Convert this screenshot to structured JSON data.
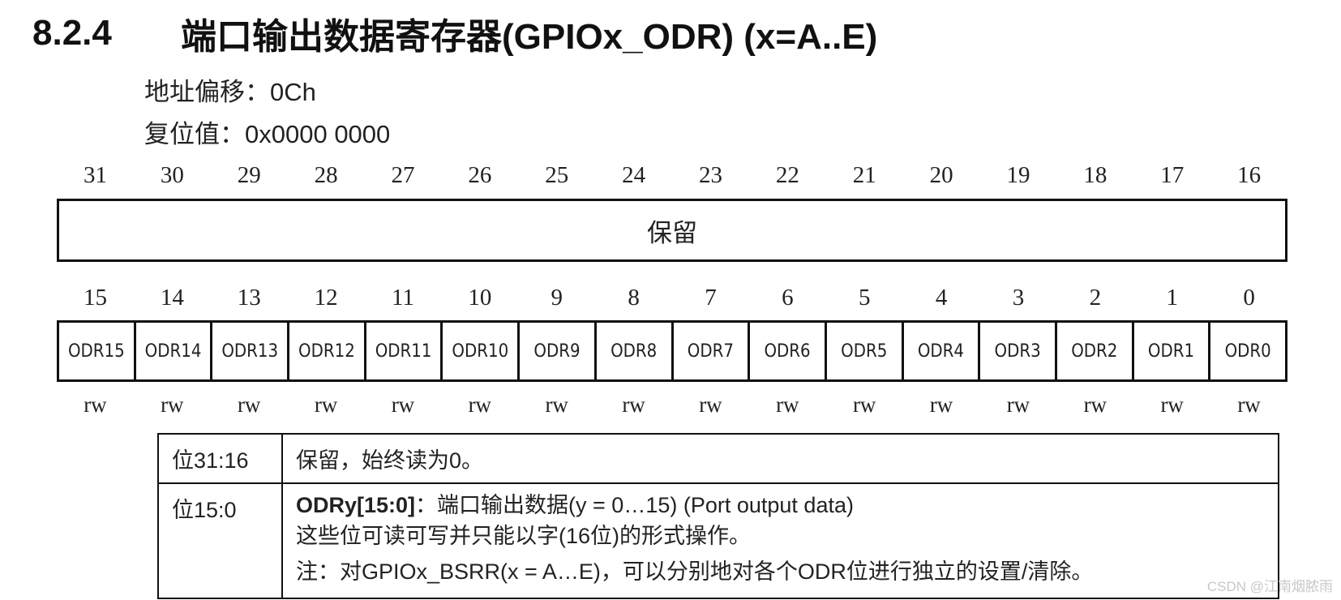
{
  "heading": {
    "number": "8.2.4",
    "title": "端口输出数据寄存器(GPIOx_ODR) (x=A..E)"
  },
  "meta": {
    "offset": "地址偏移：0Ch",
    "reset": "复位值：0x0000 0000"
  },
  "register": {
    "high_bits": [
      "31",
      "30",
      "29",
      "28",
      "27",
      "26",
      "25",
      "24",
      "23",
      "22",
      "21",
      "20",
      "19",
      "18",
      "17",
      "16"
    ],
    "reserved_label": "保留",
    "low_bits": [
      "15",
      "14",
      "13",
      "12",
      "11",
      "10",
      "9",
      "8",
      "7",
      "6",
      "5",
      "4",
      "3",
      "2",
      "1",
      "0"
    ],
    "fields": [
      "ODR15",
      "ODR14",
      "ODR13",
      "ODR12",
      "ODR11",
      "ODR10",
      "ODR9",
      "ODR8",
      "ODR7",
      "ODR6",
      "ODR5",
      "ODR4",
      "ODR3",
      "ODR2",
      "ODR1",
      "ODR0"
    ],
    "access": [
      "rw",
      "rw",
      "rw",
      "rw",
      "rw",
      "rw",
      "rw",
      "rw",
      "rw",
      "rw",
      "rw",
      "rw",
      "rw",
      "rw",
      "rw",
      "rw"
    ]
  },
  "description": {
    "rows": [
      {
        "bits": "位31:16",
        "text": "保留，始终读为0。"
      },
      {
        "bits": "位15:0",
        "title_bold": "ODRy[15:0]",
        "title_rest": "：端口输出数据(y = 0…15) (Port output data)",
        "line2": "这些位可读可写并只能以字(16位)的形式操作。",
        "line3": "注：对GPIOx_BSRR(x = A…E)，可以分别地对各个ODR位进行独立的设置/清除。"
      }
    ]
  },
  "watermark": "CSDN @江南烟脓雨"
}
